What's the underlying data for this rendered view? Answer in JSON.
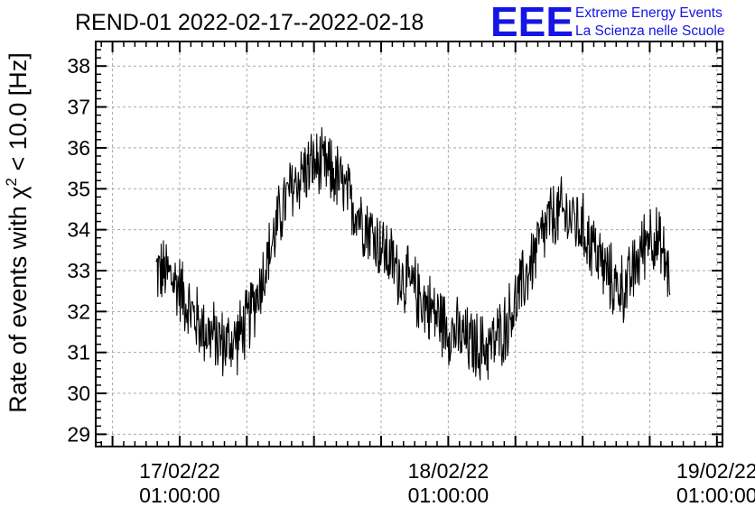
{
  "header": {
    "title": "REND-01 2022-02-17--2022-02-18"
  },
  "logo": {
    "mark": "EEE",
    "line1": "Extreme Energy Events",
    "line2": "La Scienza nelle Scuole",
    "color": "#1515e6"
  },
  "chart_data": {
    "type": "line",
    "title": "REND-01 2022-02-17--2022-02-18",
    "xlabel": "",
    "ylabel_prefix": "Rate of events with χ",
    "ylabel_sup": "2",
    "ylabel_suffix": " < 10.0 [Hz]",
    "ylim": [
      28.7,
      38.6
    ],
    "yticks": [
      29,
      30,
      31,
      32,
      33,
      34,
      35,
      36,
      37,
      38
    ],
    "xlim_hours": [
      -7.5,
      48.5
    ],
    "xticks": [
      {
        "hours": 0,
        "date": "17/02/22",
        "time": "01:00:00"
      },
      {
        "hours": 24,
        "date": "18/02/22",
        "time": "01:00:00"
      },
      {
        "hours": 48,
        "date": "19/02/22",
        "time": "01:00:00"
      }
    ],
    "grid": true,
    "line_color": "#000000",
    "series": [
      {
        "x_hours": [
          -2.1,
          -1.0,
          0.0,
          1.0,
          2.0,
          3.0,
          4.0,
          5.0,
          6.0,
          7.0,
          8.0,
          9.0,
          10.0,
          11.0,
          12.0,
          13.0,
          14.0,
          15.0,
          16.0,
          17.0,
          18.0,
          19.0,
          20.0,
          21.0,
          22.0,
          23.0,
          24.0,
          25.0,
          26.0,
          27.0,
          28.0,
          29.0,
          30.0,
          31.0,
          32.0,
          33.0,
          34.0,
          35.0,
          36.0,
          37.0,
          38.0,
          39.0,
          40.0,
          41.0,
          42.0,
          43.0,
          43.8
        ],
        "values": [
          33.0,
          32.9,
          32.6,
          32.0,
          31.6,
          31.4,
          31.2,
          31.3,
          31.7,
          32.5,
          33.4,
          34.4,
          35.0,
          35.4,
          35.6,
          35.5,
          35.3,
          34.8,
          34.4,
          34.0,
          33.6,
          33.2,
          32.8,
          32.5,
          32.2,
          31.9,
          31.6,
          31.4,
          31.2,
          31.1,
          31.2,
          31.6,
          32.2,
          32.9,
          33.6,
          34.2,
          34.4,
          34.3,
          34.0,
          33.6,
          33.0,
          32.6,
          32.6,
          33.3,
          34.0,
          33.5,
          32.9
        ],
        "noise_amplitude": 1.0
      }
    ]
  }
}
